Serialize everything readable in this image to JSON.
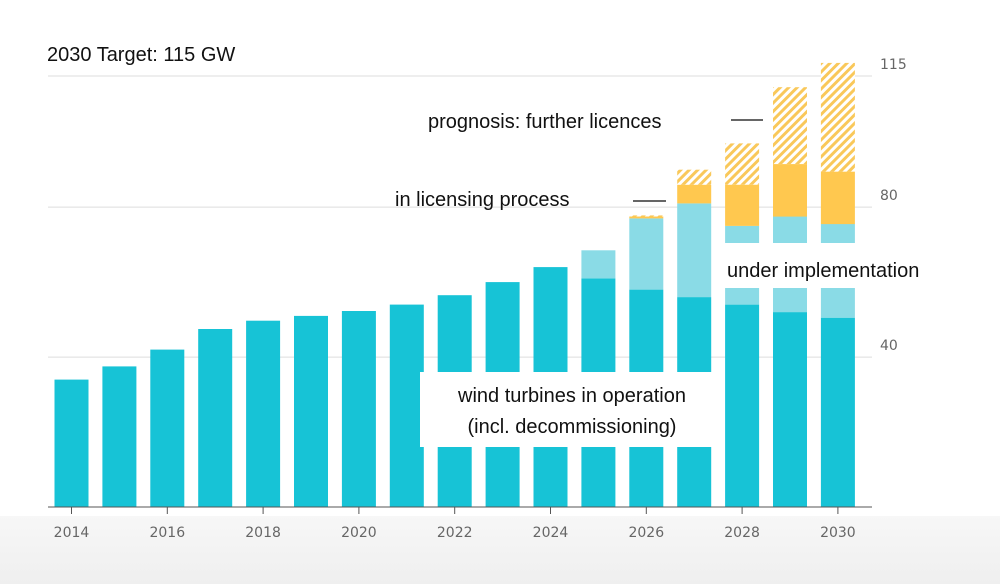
{
  "chart_data": {
    "type": "bar",
    "stacked": true,
    "title": "2030 Target: 115 GW",
    "ylim": [
      0,
      115
    ],
    "y_ticks": [
      40,
      80,
      115
    ],
    "x_tick_labels": [
      "2014",
      "2016",
      "2018",
      "2020",
      "2022",
      "2024",
      "2026",
      "2028",
      "2030"
    ],
    "categories": [
      "2014",
      "2015",
      "2016",
      "2017",
      "2018",
      "2019",
      "2020",
      "2021",
      "2022",
      "2023",
      "2024",
      "2025",
      "2026",
      "2027",
      "2028",
      "2029",
      "2030"
    ],
    "series": [
      {
        "name": "wind turbines in operation (incl. decommissioning)",
        "color": "#17c3d6",
        "pattern": "solid",
        "values": [
          34,
          37.5,
          42,
          47.5,
          49.7,
          51,
          52.3,
          54,
          56.5,
          60,
          64,
          61,
          58,
          56,
          54,
          52,
          50.5
        ]
      },
      {
        "name": "under implementation",
        "color": "#8adbe6",
        "pattern": "solid",
        "values": [
          0,
          0,
          0,
          0,
          0,
          0,
          0,
          0,
          0,
          0,
          0,
          7.5,
          19,
          25,
          21,
          25.5,
          25
        ]
      },
      {
        "name": "in licensing process",
        "color": "#ffc84f",
        "pattern": "solid",
        "values": [
          0,
          0,
          0,
          0,
          0,
          0,
          0,
          0,
          0,
          0,
          0,
          0,
          0.5,
          5,
          11,
          14,
          14
        ]
      },
      {
        "name": "prognosis: further licences",
        "color": "#f9c85a",
        "pattern": "hatched",
        "values": [
          0,
          0,
          0,
          0,
          0,
          0,
          0,
          0,
          0,
          0,
          0,
          0,
          0.3,
          4,
          11,
          20.5,
          29
        ]
      }
    ],
    "annotations": {
      "prognosis": "prognosis: further licences",
      "licensing": "in licensing process",
      "implementation": "under implementation",
      "operation_line1": "wind turbines in operation",
      "operation_line2": "(incl. decommissioning)"
    }
  }
}
